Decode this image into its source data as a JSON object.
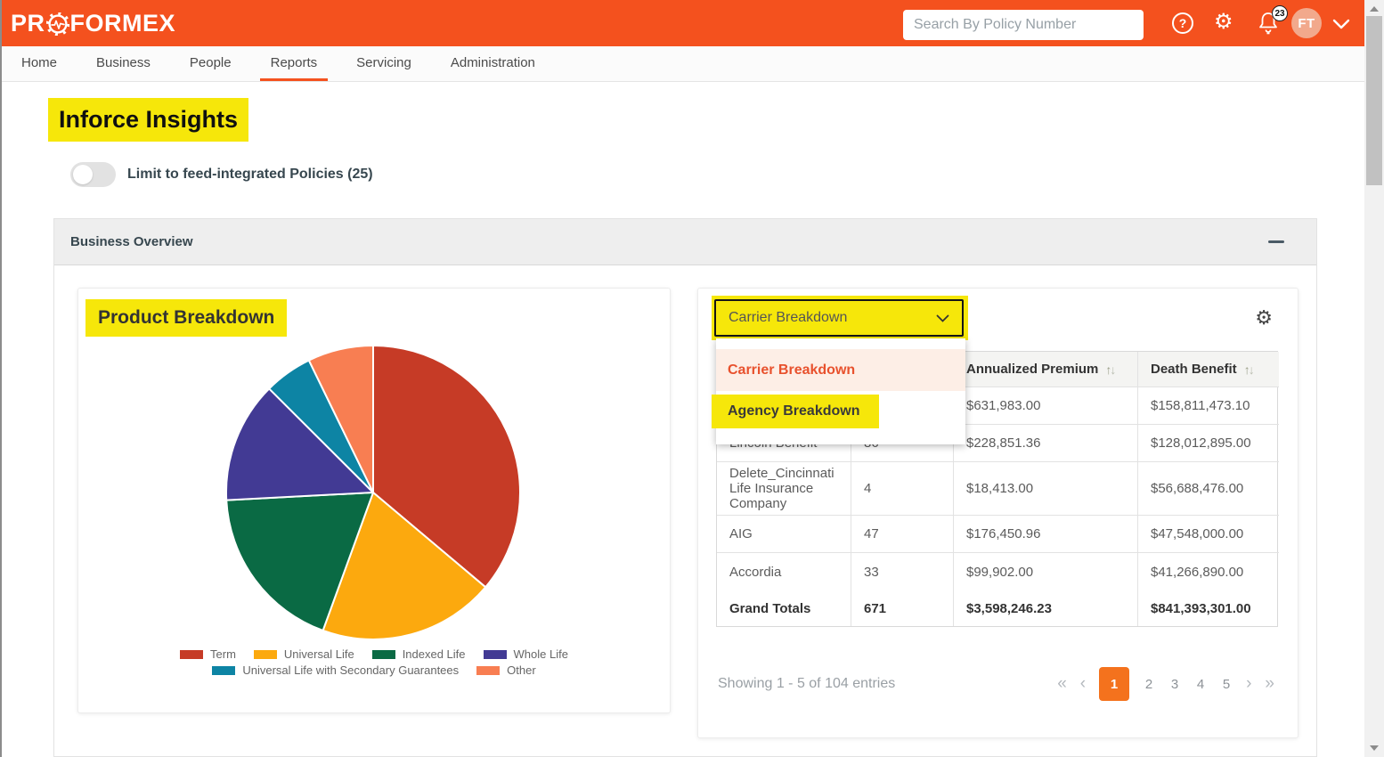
{
  "header": {
    "logo_prefix": "PR",
    "logo_suffix": "FORMEX",
    "search_placeholder": "Search By Policy Number",
    "notification_badge": "23",
    "avatar_initials": "FT"
  },
  "nav": {
    "items": [
      {
        "label": "Home",
        "active": false
      },
      {
        "label": "Business",
        "active": false
      },
      {
        "label": "People",
        "active": false
      },
      {
        "label": "Reports",
        "active": true
      },
      {
        "label": "Servicing",
        "active": false
      },
      {
        "label": "Administration",
        "active": false
      }
    ]
  },
  "page": {
    "title": "Inforce Insights",
    "feed_toggle": {
      "label": "Limit to feed-integrated Policies (25)",
      "on": false
    },
    "section_title": "Business Overview"
  },
  "chart_data": {
    "type": "pie",
    "title": "Product Breakdown",
    "labels": [
      "Term",
      "Universal Life",
      "Indexed Life",
      "Whole Life",
      "Universal Life with Secondary Guarantees",
      "Other"
    ],
    "values_percent": [
      36.1,
      19.4,
      18.6,
      13.3,
      5.3,
      7.2
    ],
    "colors": [
      "#c63b26",
      "#fca90e",
      "#0a6a44",
      "#423a94",
      "#0d84a4",
      "#f87e52"
    ],
    "start_angle_deg": 0,
    "legend_position": "bottom"
  },
  "breakdown_panel": {
    "selector_value": "Carrier Breakdown",
    "dropdown_options": [
      {
        "label": "Carrier Breakdown",
        "selected": true
      },
      {
        "label": "Agency Breakdown",
        "selected": false
      }
    ],
    "table": {
      "headers": [
        {
          "label": "",
          "sortable": false
        },
        {
          "label": "",
          "sortable": false
        },
        {
          "label": "Annualized Premium",
          "sortable": true
        },
        {
          "label": "Death Benefit",
          "sortable": true
        }
      ],
      "rows": [
        {
          "carrier": "",
          "policies": "",
          "premium": "$631,983.00",
          "death_benefit": "$158,811,473.10"
        },
        {
          "carrier": "Lincoln Benefit",
          "policies": "86",
          "premium": "$228,851.36",
          "death_benefit": "$128,012,895.00"
        },
        {
          "carrier": "Delete_Cincinnati Life Insurance Company",
          "policies": "4",
          "premium": "$18,413.00",
          "death_benefit": "$56,688,476.00"
        },
        {
          "carrier": "AIG",
          "policies": "47",
          "premium": "$176,450.96",
          "death_benefit": "$47,548,000.00"
        },
        {
          "carrier": "Accordia",
          "policies": "33",
          "premium": "$99,902.00",
          "death_benefit": "$41,266,890.00"
        }
      ],
      "totals": {
        "carrier": "Grand Totals",
        "policies": "671",
        "premium": "$3,598,246.23",
        "death_benefit": "$841,393,301.00"
      }
    },
    "pagination": {
      "showing_text": "Showing 1 - 5 of 104 entries",
      "pages": [
        "1",
        "2",
        "3",
        "4",
        "5"
      ],
      "active_page": "1",
      "first_label": "«",
      "prev_label": "‹",
      "next_label": "›",
      "last_label": "»"
    }
  },
  "icons": {
    "help": "?",
    "gear": "⚙",
    "sort_up": "↑",
    "sort_down": "↓"
  },
  "colors": {
    "brand_orange": "#f4511e",
    "highlight_yellow": "#f6e70a",
    "option_orange": "#e8512d",
    "option_peach_bg": "#fdeee6",
    "pager_active_orange": "#f4721d",
    "avatar_bg": "#f2a98c"
  }
}
